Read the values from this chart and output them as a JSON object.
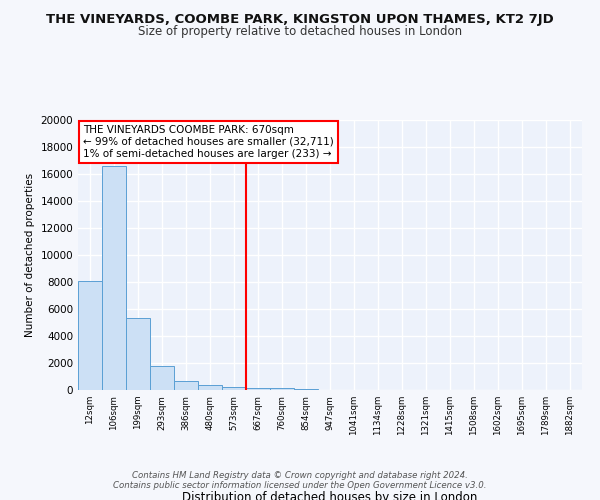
{
  "title": "THE VINEYARDS, COOMBE PARK, KINGSTON UPON THAMES, KT2 7JD",
  "subtitle": "Size of property relative to detached houses in London",
  "xlabel": "Distribution of detached houses by size in London",
  "ylabel": "Number of detached properties",
  "bin_labels": [
    "12sqm",
    "106sqm",
    "199sqm",
    "293sqm",
    "386sqm",
    "480sqm",
    "573sqm",
    "667sqm",
    "760sqm",
    "854sqm",
    "947sqm",
    "1041sqm",
    "1134sqm",
    "1228sqm",
    "1321sqm",
    "1415sqm",
    "1508sqm",
    "1602sqm",
    "1695sqm",
    "1789sqm",
    "1882sqm"
  ],
  "bar_heights": [
    8100,
    16600,
    5300,
    1750,
    700,
    350,
    250,
    150,
    150,
    100,
    0,
    0,
    0,
    0,
    0,
    0,
    0,
    0,
    0,
    0,
    0
  ],
  "bar_color": "#cce0f5",
  "bar_edge_color": "#5a9fd4",
  "property_line_x": 6.5,
  "property_line_color": "red",
  "annotation_text": "THE VINEYARDS COOMBE PARK: 670sqm\n← 99% of detached houses are smaller (32,711)\n1% of semi-detached houses are larger (233) →",
  "annotation_box_color": "white",
  "annotation_box_edge": "red",
  "footer": "Contains HM Land Registry data © Crown copyright and database right 2024.\nContains public sector information licensed under the Open Government Licence v3.0.",
  "bg_color": "#edf2fb",
  "grid_color": "#ffffff",
  "fig_color": "#f5f7fc",
  "ylim": [
    0,
    20000
  ],
  "yticks": [
    0,
    2000,
    4000,
    6000,
    8000,
    10000,
    12000,
    14000,
    16000,
    18000,
    20000
  ]
}
